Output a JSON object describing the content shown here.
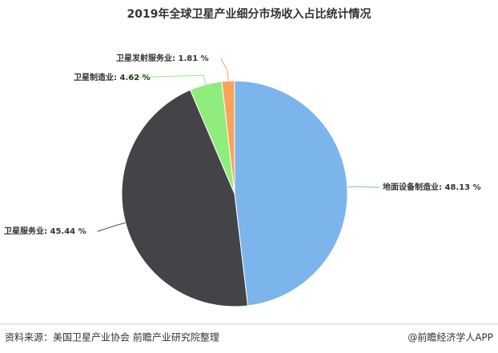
{
  "chart_data": {
    "type": "pie",
    "title": "2019年全球卫星产业细分市场收入占比统计情况",
    "categories": [
      "地面设备制造业",
      "卫星服务业",
      "卫星制造业",
      "卫星发射服务业"
    ],
    "values": [
      48.13,
      45.44,
      4.62,
      1.81
    ],
    "value_labels": [
      "48.13 %",
      "45.44 %",
      "4.62 %",
      "1.81 %"
    ],
    "colors": [
      "#7cb5ec",
      "#434348",
      "#90ed7d",
      "#f7a35c"
    ]
  },
  "footer": {
    "source": "资料来源：美国卫星产业协会 前瞻产业研究院整理",
    "credit": "@前瞻经济学人APP"
  }
}
